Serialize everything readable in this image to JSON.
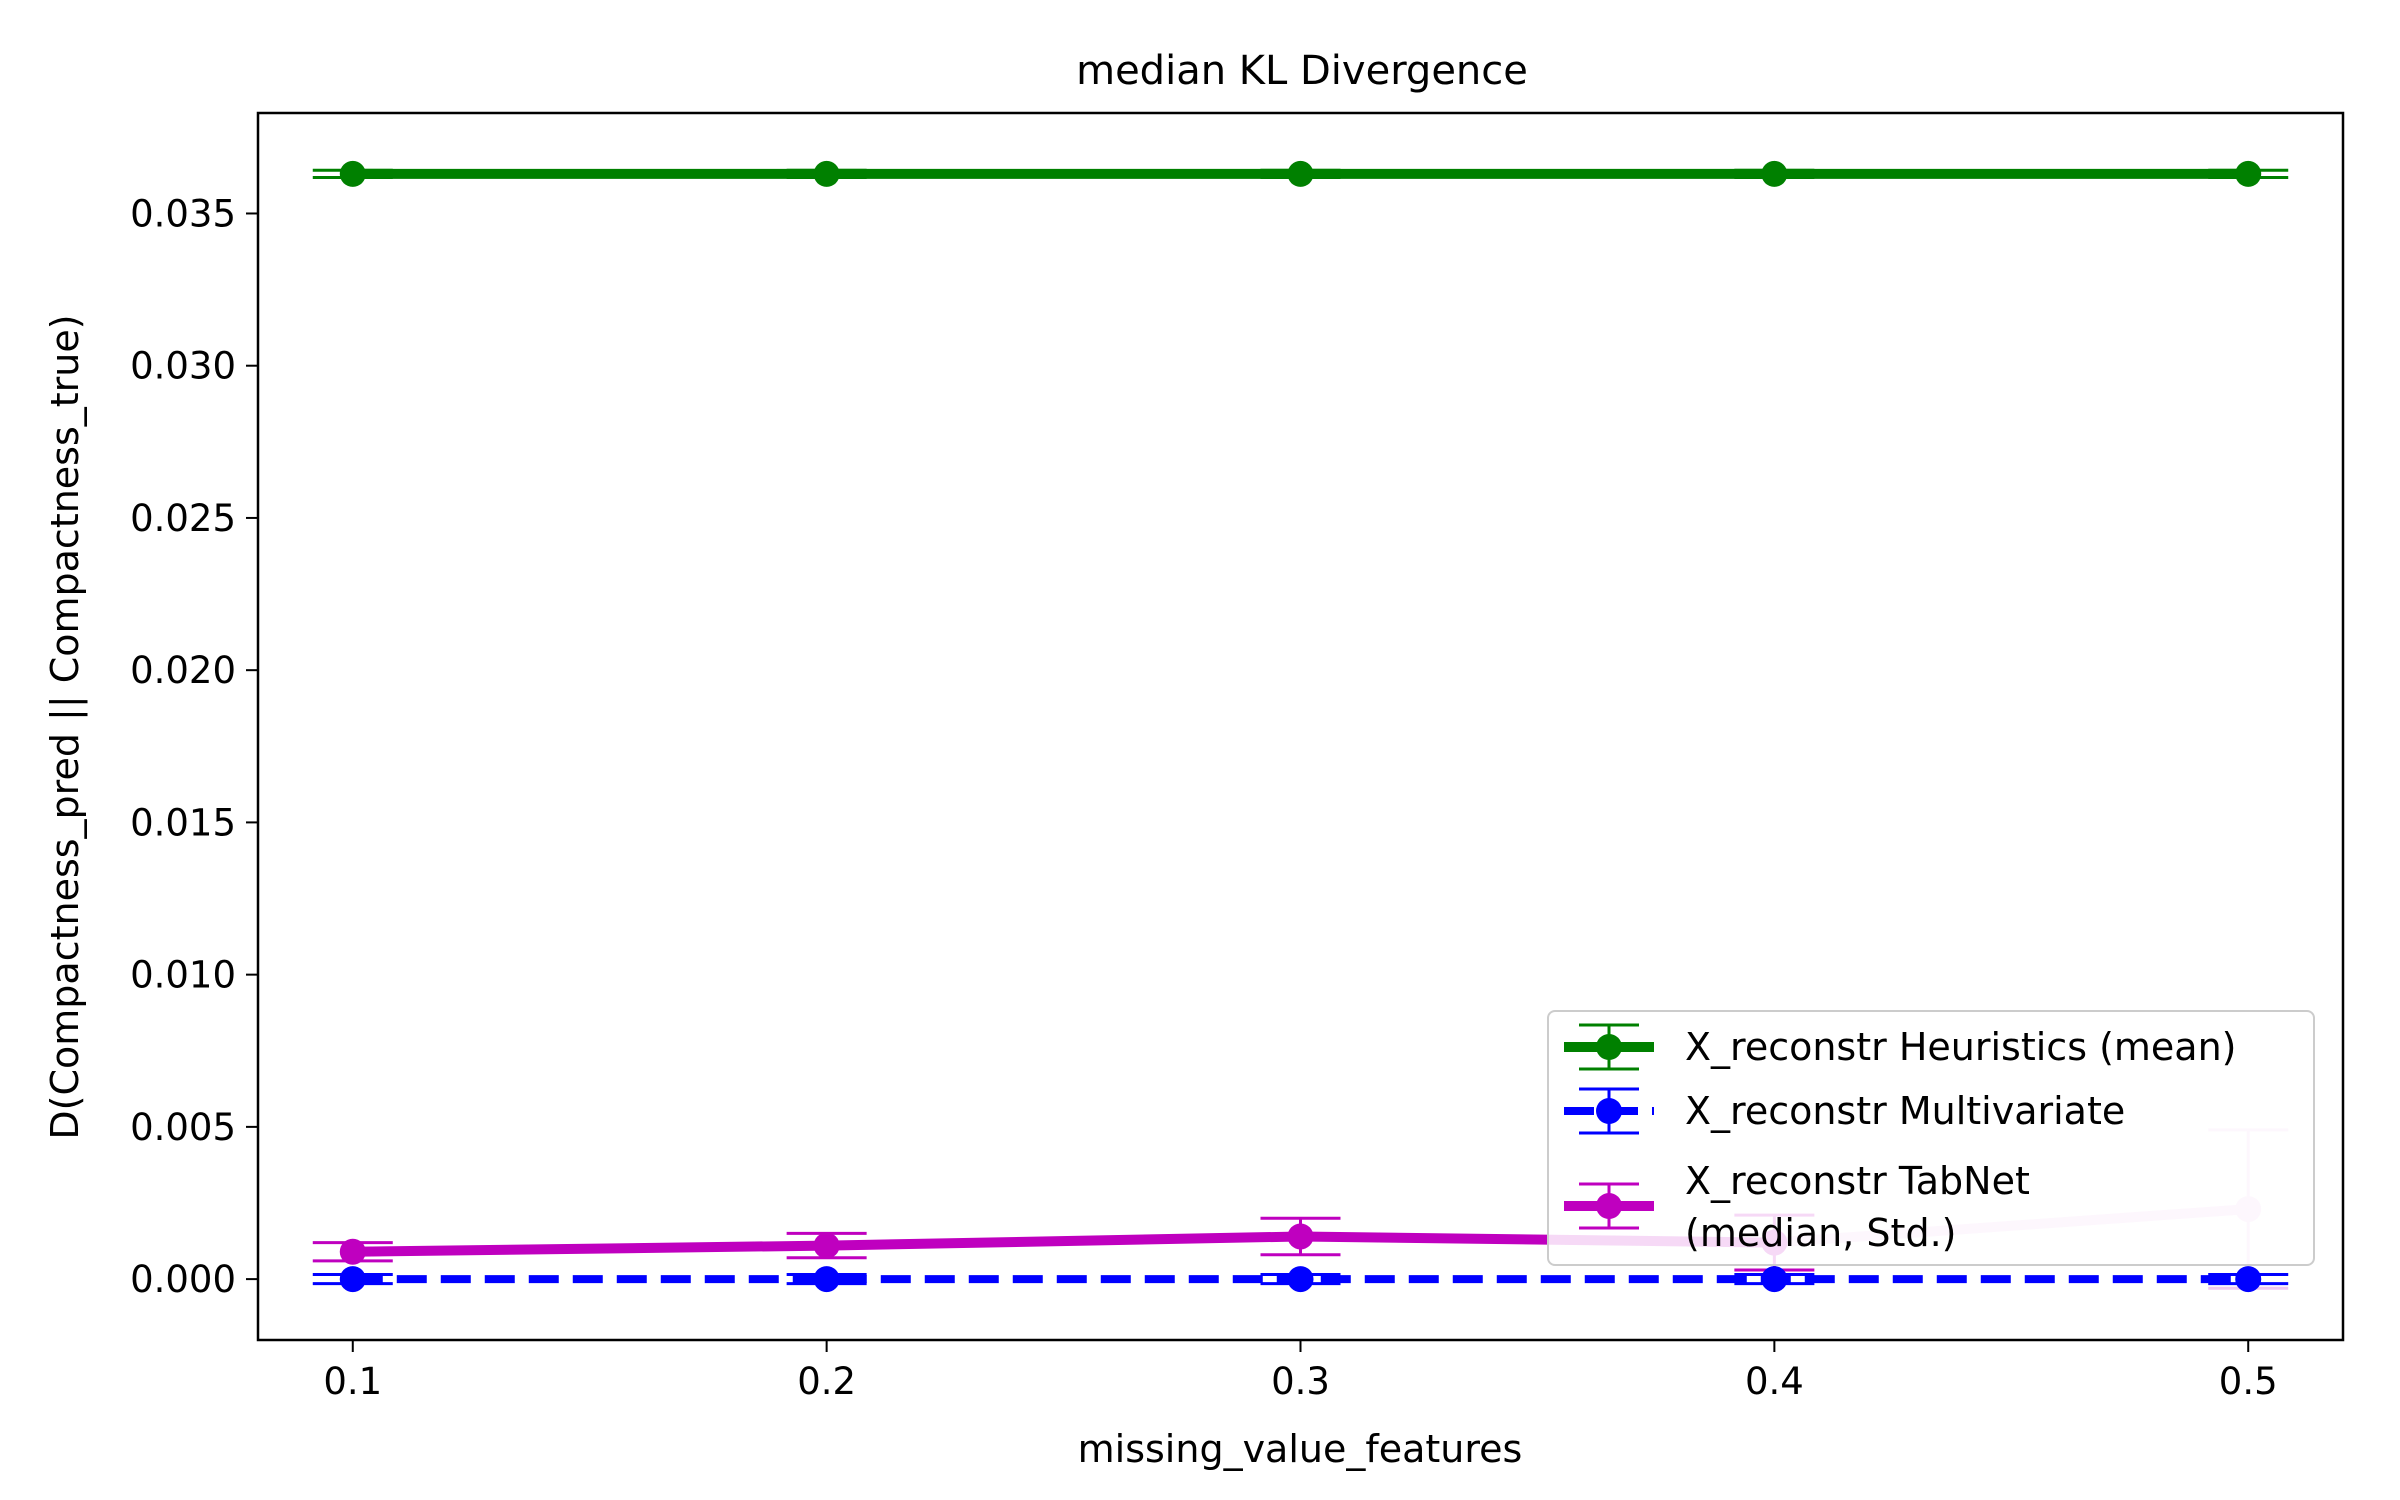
{
  "chart_data": {
    "type": "line",
    "title": "median KL Divergence",
    "xlabel": "missing_value_features",
    "ylabel": "D(Compactness_pred || Compactness_true)",
    "x": [
      0.1,
      0.2,
      0.3,
      0.4,
      0.5
    ],
    "x_ticks": [
      "0.1",
      "0.2",
      "0.3",
      "0.4",
      "0.5"
    ],
    "y_ticks": [
      "0.000",
      "0.005",
      "0.010",
      "0.015",
      "0.020",
      "0.025",
      "0.030",
      "0.035"
    ],
    "xlim": [
      0.08,
      0.52
    ],
    "ylim": [
      -0.002,
      0.0383
    ],
    "grid": false,
    "legend_position": "lower right",
    "series": [
      {
        "name": "X_reconstr Heuristics (mean)",
        "color": "#008000",
        "line_style": "solid",
        "values": [
          0.0363,
          0.0363,
          0.0363,
          0.0363,
          0.0363
        ],
        "err": [
          0.00012,
          0.00012,
          0.00012,
          0.00012,
          0.00012
        ]
      },
      {
        "name": "X_reconstr Multivariate",
        "color": "#0000ff",
        "line_style": "dashed",
        "values": [
          0.0,
          0.0,
          0.0,
          0.0,
          0.0
        ],
        "err": [
          0.00015,
          0.00015,
          0.00015,
          0.00015,
          0.00015
        ]
      },
      {
        "name": "X_reconstr TabNet\n(median, Std.)",
        "color": "#bf00bf",
        "light_color": "#efc6ef",
        "line_style": "solid",
        "values": [
          0.0009,
          0.0011,
          0.0014,
          0.0012,
          0.0023
        ],
        "err": [
          0.0003,
          0.0004,
          0.0006,
          0.0009,
          0.0026
        ]
      }
    ]
  }
}
